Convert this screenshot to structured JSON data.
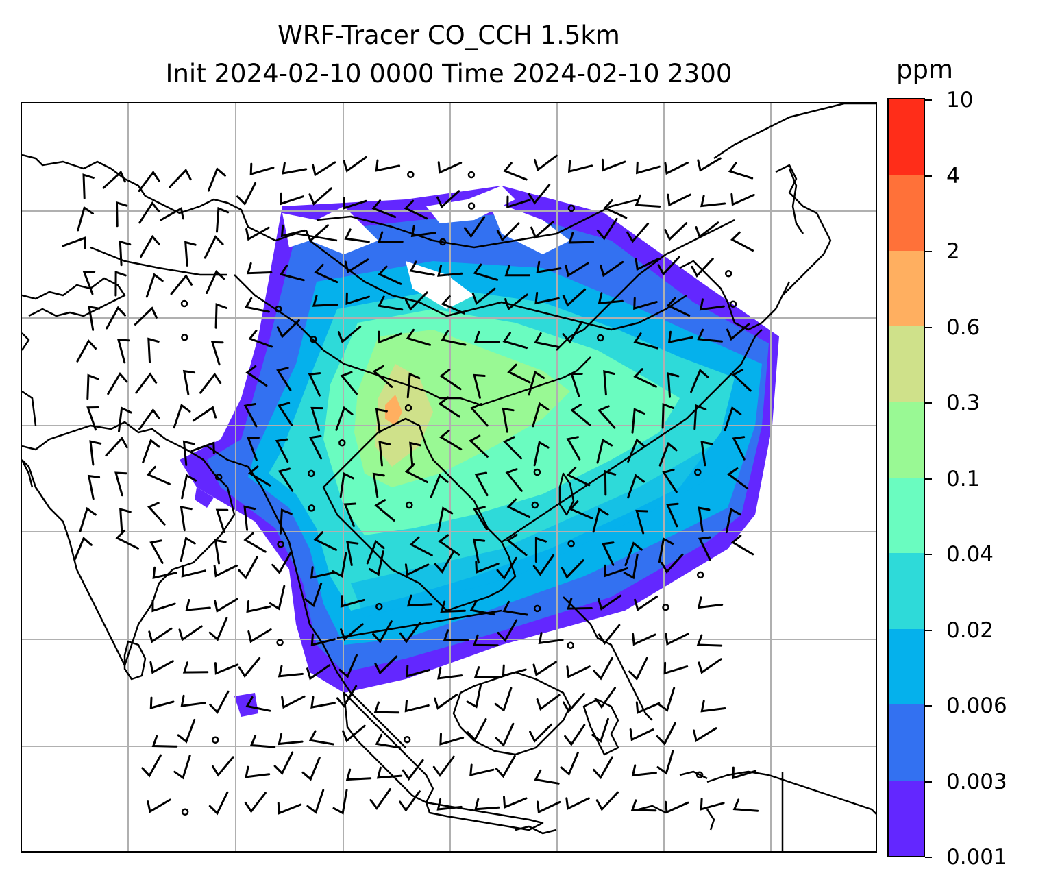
{
  "title": {
    "line1": "WRF-Tracer CO_CCH 1.5km",
    "line2": "Init 2024-02-10 0000 Time 2024-02-10 2300"
  },
  "colorbar": {
    "unit": "ppm",
    "levels": [
      "0.001",
      "0.003",
      "0.006",
      "0.02",
      "0.04",
      "0.1",
      "0.3",
      "0.6",
      "2",
      "4",
      "10"
    ],
    "colors": [
      "#6327ff",
      "#3371f1",
      "#05b1ec",
      "#2edad9",
      "#6afcc0",
      "#99f994",
      "#cfe18a",
      "#ffaf60",
      "#ff7139",
      "#ff2d19"
    ]
  },
  "map": {
    "gridlines": true,
    "grid_color": "#b0b0b0",
    "coastline_color": "#000000",
    "wind_barb_color": "#000000"
  }
}
